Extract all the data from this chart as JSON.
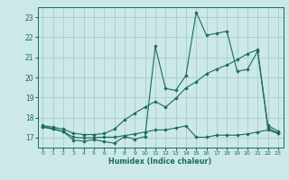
{
  "xlabel": "Humidex (Indice chaleur)",
  "bg_color": "#cce8e8",
  "grid_color": "#aacccc",
  "line_color": "#1a6b60",
  "x_values": [
    0,
    1,
    2,
    3,
    4,
    5,
    6,
    7,
    8,
    9,
    10,
    11,
    12,
    13,
    14,
    15,
    16,
    17,
    18,
    19,
    20,
    21,
    22,
    23
  ],
  "main_line": [
    17.55,
    17.45,
    17.3,
    16.88,
    16.82,
    16.9,
    16.8,
    16.72,
    17.05,
    16.92,
    17.05,
    21.55,
    19.45,
    19.35,
    20.1,
    23.25,
    22.1,
    22.2,
    22.3,
    20.3,
    20.4,
    21.3,
    17.48,
    17.22
  ],
  "upper_line": [
    17.6,
    17.52,
    17.42,
    17.22,
    17.15,
    17.15,
    17.2,
    17.42,
    17.88,
    18.22,
    18.52,
    18.8,
    18.52,
    18.95,
    19.48,
    19.78,
    20.18,
    20.42,
    20.62,
    20.88,
    21.18,
    21.38,
    17.6,
    17.32
  ],
  "lower_line": [
    17.52,
    17.42,
    17.3,
    17.02,
    16.98,
    17.0,
    17.02,
    17.02,
    17.1,
    17.18,
    17.28,
    17.38,
    17.38,
    17.48,
    17.58,
    17.02,
    17.02,
    17.12,
    17.12,
    17.12,
    17.18,
    17.28,
    17.38,
    17.2
  ],
  "ylim": [
    16.5,
    23.5
  ],
  "yticks": [
    17,
    18,
    19,
    20,
    21,
    22,
    23
  ],
  "xlim": [
    -0.5,
    23.5
  ],
  "xticks": [
    0,
    1,
    2,
    3,
    4,
    5,
    6,
    7,
    8,
    9,
    10,
    11,
    12,
    13,
    14,
    15,
    16,
    17,
    18,
    19,
    20,
    21,
    22,
    23
  ]
}
